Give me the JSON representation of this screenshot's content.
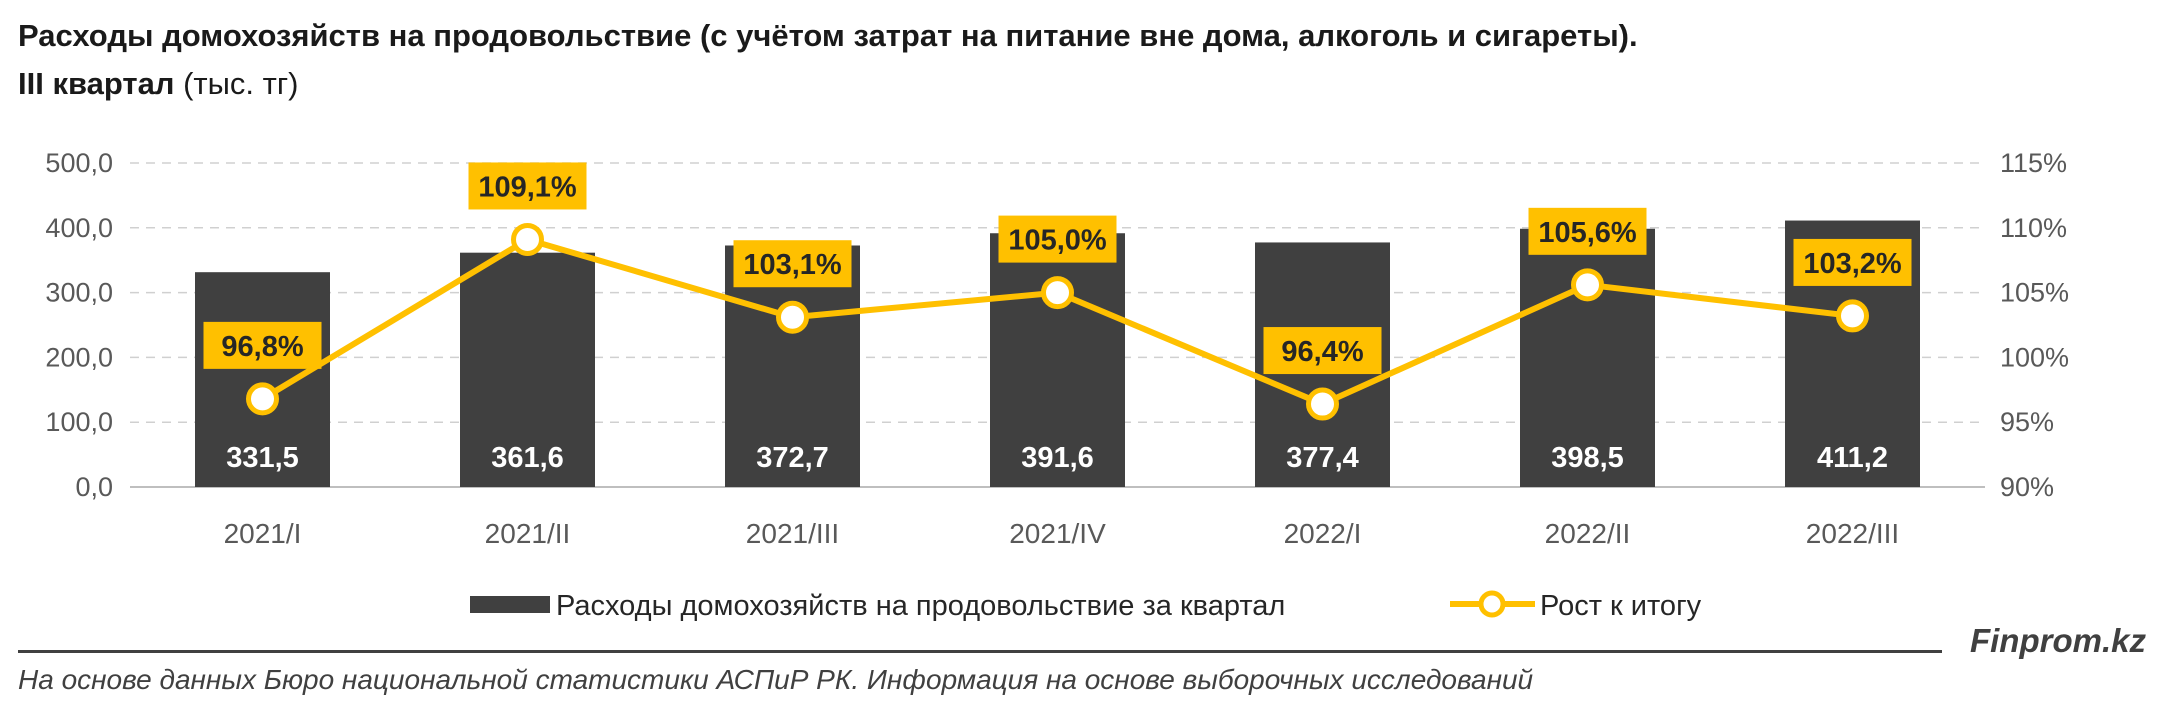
{
  "title": {
    "line1": "Расходы домохозяйств на продовольствие (с учётом затрат на питание вне дома, алкоголь и сигареты).",
    "line2_bold": "III квартал",
    "line2_normal": " (тыс. тг)"
  },
  "chart_data": {
    "type": "bar+line",
    "categories": [
      "2021/I",
      "2021/II",
      "2021/III",
      "2021/IV",
      "2022/I",
      "2022/II",
      "2022/III"
    ],
    "series": [
      {
        "name": "Расходы домохозяйств на продовольствие за квартал",
        "type": "bar",
        "axis": "left",
        "values": [
          331.5,
          361.6,
          372.7,
          391.6,
          377.4,
          398.5,
          411.2
        ],
        "labels": [
          "331,5",
          "361,6",
          "372,7",
          "391,6",
          "377,4",
          "398,5",
          "411,2"
        ],
        "color": "#404040"
      },
      {
        "name": "Рост к итогу",
        "type": "line",
        "axis": "right",
        "values": [
          96.8,
          109.1,
          103.1,
          105.0,
          96.4,
          105.6,
          103.2
        ],
        "labels": [
          "96,8%",
          "109,1%",
          "103,1%",
          "105,0%",
          "96,4%",
          "105,6%",
          "103,2%"
        ],
        "color": "#FFC000"
      }
    ],
    "y_left": {
      "min": 0,
      "max": 500,
      "step": 100,
      "ticks": [
        "0,0",
        "100,0",
        "200,0",
        "300,0",
        "400,0",
        "500,0"
      ]
    },
    "y_right": {
      "min": 90,
      "max": 115,
      "step": 5,
      "ticks": [
        "90%",
        "95%",
        "100%",
        "105%",
        "110%",
        "115%"
      ]
    },
    "grid": true,
    "legend_position": "bottom"
  },
  "footer": {
    "brand": "Finprom.kz",
    "source": "На основе данных Бюро национальной статистики АСПиР РК. Информация на основе выборочных исследований"
  }
}
